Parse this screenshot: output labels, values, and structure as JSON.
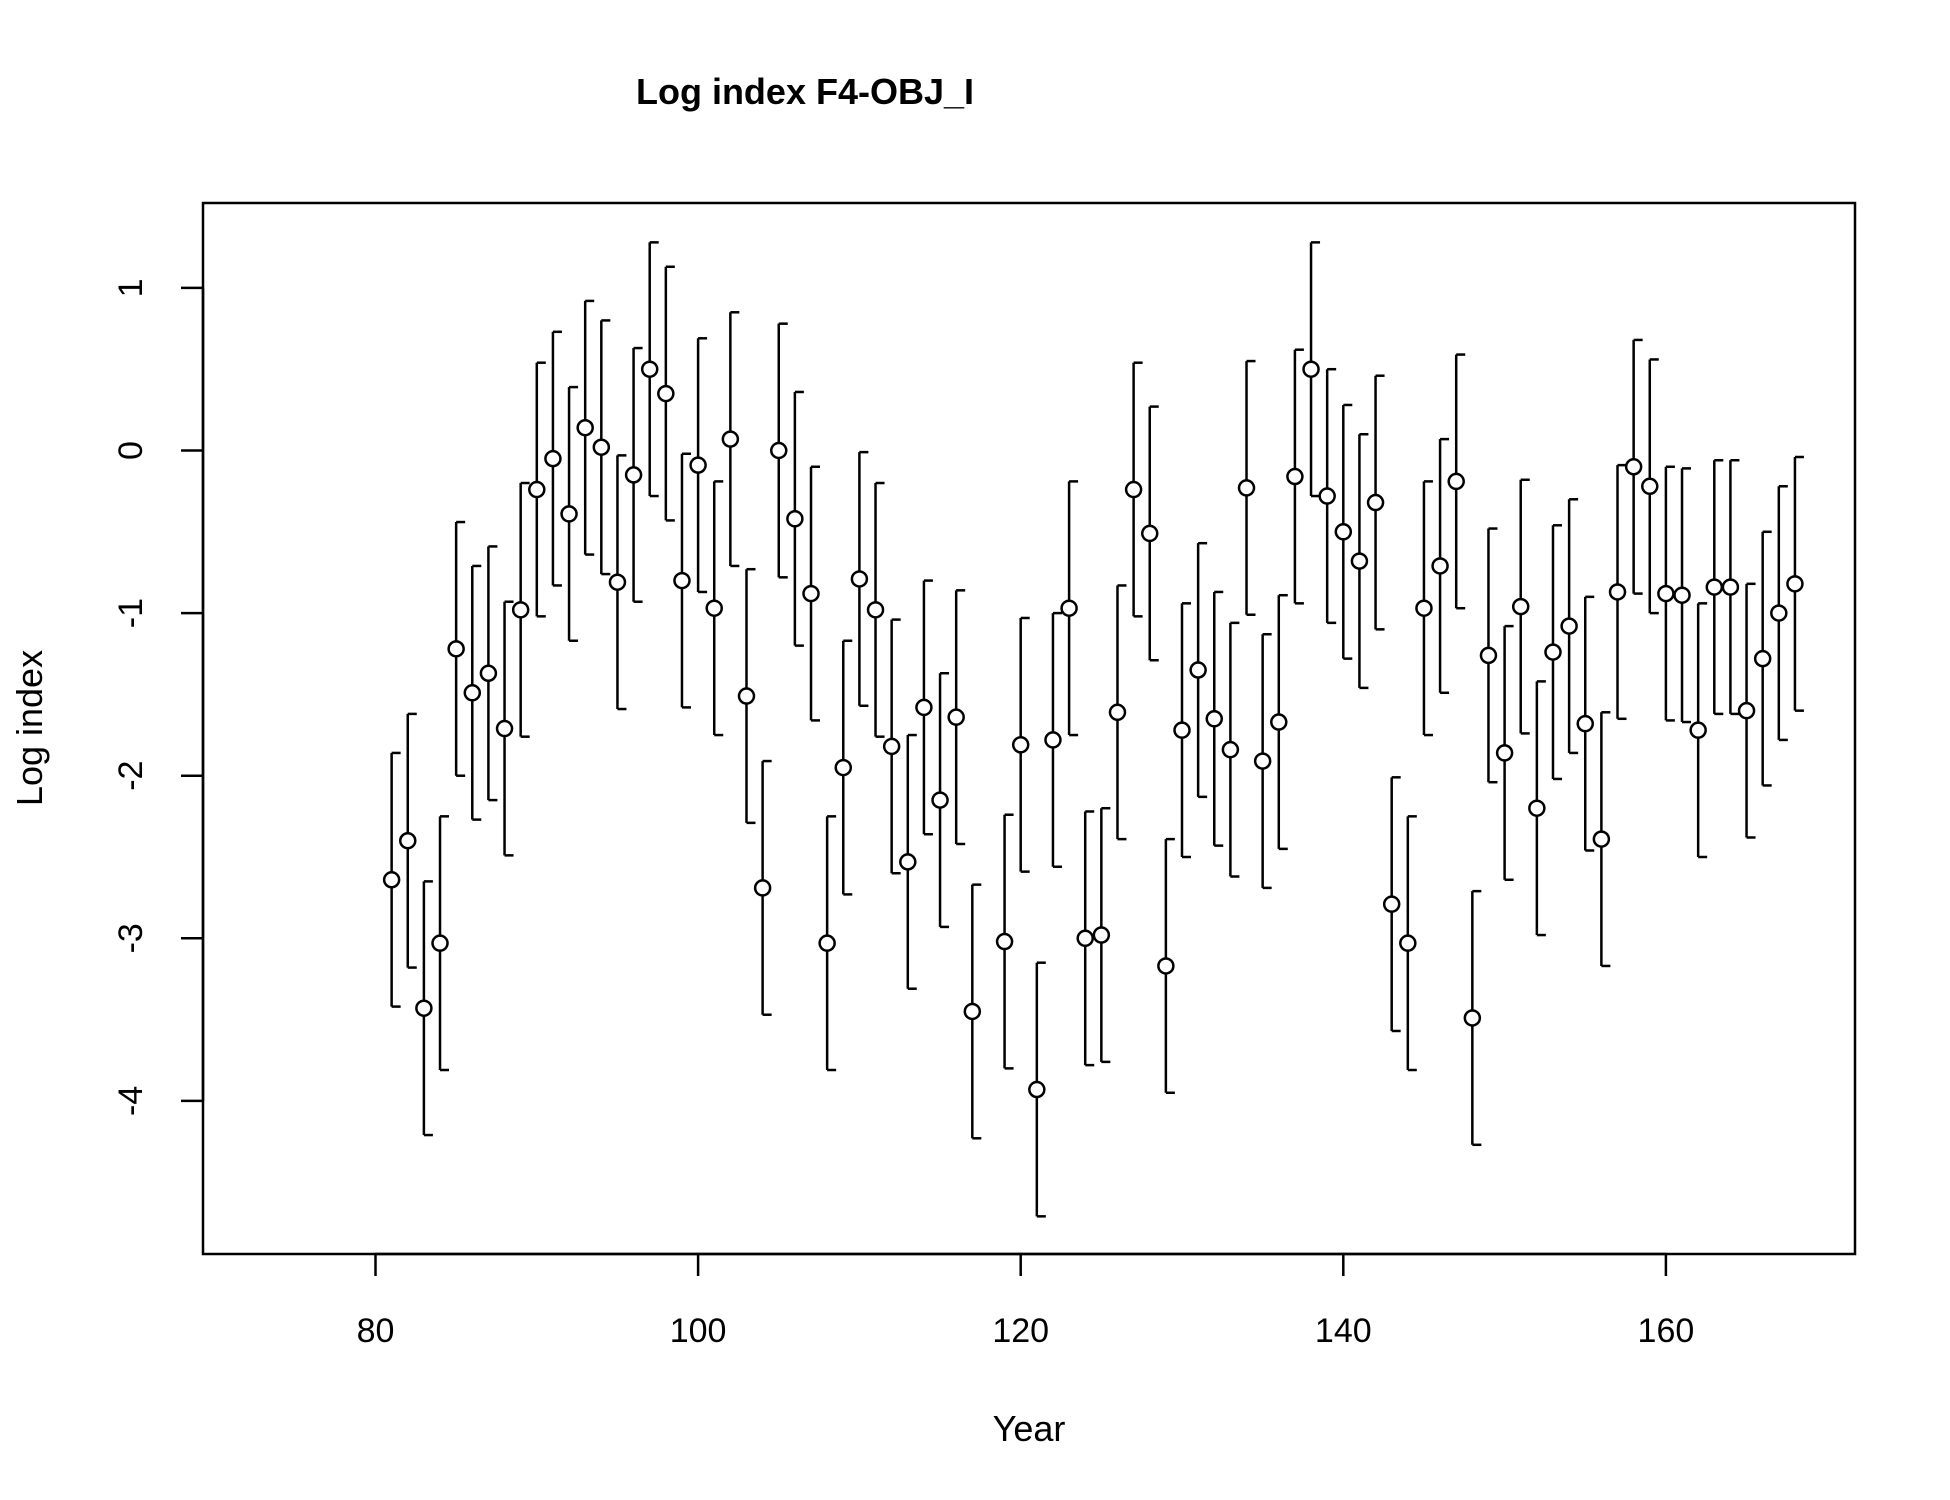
{
  "chart_data": {
    "type": "scatter",
    "title": "Log index F4-OBJ_I",
    "xlabel": "Year",
    "ylabel": "Log index",
    "xlim": [
      70,
      170
    ],
    "ylim": [
      -4.9,
      1.5
    ],
    "xticks": [
      80,
      100,
      120,
      140,
      160
    ],
    "yticks": [
      -4,
      -3,
      -2,
      -1,
      0,
      1
    ],
    "error_half_width": 0.78,
    "series": [
      {
        "x": [
          81,
          82,
          83,
          84,
          85,
          86,
          87,
          88,
          89,
          90,
          91,
          92,
          93,
          94,
          95,
          96,
          97,
          98,
          99,
          100,
          101,
          102,
          103,
          104,
          105,
          106,
          107,
          108,
          109,
          110,
          111,
          112,
          113,
          114,
          115,
          116,
          117,
          119,
          120,
          121,
          122,
          123,
          124,
          125,
          126,
          127,
          128,
          129,
          130,
          131,
          132,
          133,
          134,
          135,
          136,
          137,
          138,
          139,
          140,
          141,
          142,
          143,
          144,
          145,
          146,
          147,
          148,
          149,
          150,
          151,
          152,
          153,
          154,
          155,
          156,
          157,
          158,
          159,
          160,
          161,
          162,
          163,
          164,
          165,
          166,
          167,
          168
        ],
        "y": [
          -2.64,
          -2.4,
          -3.43,
          -3.03,
          -1.22,
          -1.49,
          -1.37,
          -1.71,
          -0.98,
          -0.24,
          -0.05,
          -0.39,
          0.14,
          0.02,
          -0.81,
          -0.15,
          0.5,
          0.35,
          -0.8,
          -0.09,
          -0.97,
          0.07,
          -1.51,
          -2.69,
          0.0,
          -0.42,
          -0.88,
          -3.03,
          -1.95,
          -0.79,
          -0.98,
          -1.82,
          -2.53,
          -1.58,
          -2.15,
          -1.64,
          -3.45,
          -3.02,
          -1.81,
          -3.93,
          -1.78,
          -0.97,
          -3.0,
          -2.98,
          -1.61,
          -0.24,
          -0.51,
          -3.17,
          -1.72,
          -1.35,
          -1.65,
          -1.84,
          -0.23,
          -1.91,
          -1.67,
          -0.16,
          0.5,
          -0.28,
          -0.5,
          -0.68,
          -0.32,
          -2.79,
          -3.03,
          -0.97,
          -0.71,
          -0.19,
          -3.49,
          -1.26,
          -1.86,
          -0.96,
          -2.2,
          -1.24,
          -1.08,
          -1.68,
          -2.39,
          -0.87,
          -0.1,
          -0.22,
          -0.88,
          -0.89,
          -1.72,
          -0.84,
          -0.84,
          -1.6,
          -1.28,
          -1.0,
          -0.82
        ]
      }
    ]
  }
}
